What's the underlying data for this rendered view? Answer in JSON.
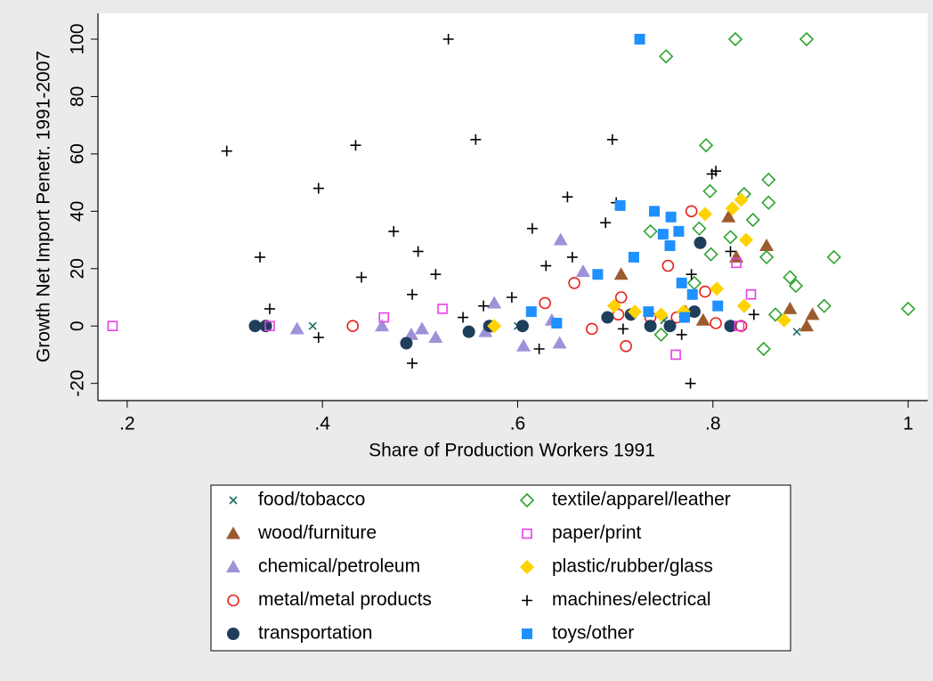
{
  "chart_data": {
    "type": "scatter",
    "x_label": "Share of Production Workers 1991",
    "y_label": "Growth Net Import Penetr. 1991-2007",
    "xlim": [
      0.17,
      1.02
    ],
    "ylim": [
      -26,
      109
    ],
    "xticks": [
      {
        "value": 0.2,
        "label": ".2"
      },
      {
        "value": 0.4,
        "label": ".4"
      },
      {
        "value": 0.6,
        "label": ".6"
      },
      {
        "value": 0.8,
        "label": ".8"
      },
      1
    ],
    "yticks": [
      -20,
      0,
      20,
      40,
      60,
      80,
      100
    ],
    "grid": false,
    "legend": "bottom",
    "series": [
      {
        "name": "food/tobacco",
        "color": "#1a6e64",
        "marker": "x",
        "x": [
          0.39,
          0.57,
          0.6,
          0.75,
          0.886
        ],
        "values": [
          0,
          -1,
          0,
          2,
          -2
        ]
      },
      {
        "name": "wood/furniture",
        "color": "#9c5b2f",
        "marker": "triangle",
        "x": [
          0.706,
          0.816,
          0.855,
          0.879,
          0.902,
          0.896,
          0.824,
          0.79,
          0.772
        ],
        "values": [
          18,
          38,
          28,
          6,
          4,
          0,
          24,
          2,
          5
        ]
      },
      {
        "name": "chemical/petroleum",
        "color": "#9d92d8",
        "marker": "triangle",
        "x": [
          0.374,
          0.461,
          0.491,
          0.502,
          0.516,
          0.576,
          0.606,
          0.644,
          0.643,
          0.667,
          0.635,
          0.567
        ],
        "values": [
          -1,
          0,
          -3,
          -1,
          -4,
          8,
          -7,
          30,
          -6,
          19,
          2,
          -2
        ]
      },
      {
        "name": "metal/metal products",
        "color": "#e8221d",
        "marker": "circle-open",
        "x": [
          0.431,
          0.628,
          0.658,
          0.706,
          0.711,
          0.754,
          0.778,
          0.736,
          0.792,
          0.803,
          0.829,
          0.763,
          0.676,
          0.703
        ],
        "values": [
          0,
          8,
          15,
          10,
          -7,
          21,
          40,
          3,
          12,
          1,
          0,
          3,
          -1,
          4
        ]
      },
      {
        "name": "transportation",
        "color": "#1f3e5c",
        "marker": "circle",
        "x": [
          0.331,
          0.342,
          0.486,
          0.55,
          0.571,
          0.605,
          0.692,
          0.716,
          0.736,
          0.756,
          0.787,
          0.781,
          0.818
        ],
        "values": [
          0,
          0,
          -6,
          -2,
          0,
          0,
          3,
          4,
          0,
          0,
          29,
          5,
          0
        ]
      },
      {
        "name": "textile/apparel/leather",
        "color": "#2ea32e",
        "marker": "diamond-open",
        "x": [
          0.752,
          0.823,
          0.896,
          0.793,
          0.797,
          0.832,
          0.857,
          0.857,
          0.841,
          0.786,
          0.736,
          0.818,
          0.798,
          0.855,
          0.924,
          0.879,
          0.885,
          1,
          0.914,
          0.852,
          0.747,
          0.781,
          0.864
        ],
        "values": [
          94,
          100,
          100,
          63,
          47,
          46,
          51,
          43,
          37,
          34,
          33,
          31,
          25,
          24,
          24,
          17,
          14,
          6,
          7,
          -8,
          -3,
          15,
          4
        ]
      },
      {
        "name": "paper/print",
        "color": "#e83ee8",
        "marker": "square-open",
        "x": [
          0.185,
          0.346,
          0.463,
          0.523,
          0.762,
          0.824,
          0.839,
          0.827
        ],
        "values": [
          0,
          0,
          3,
          6,
          -10,
          22,
          11,
          0
        ]
      },
      {
        "name": "plastic/rubber/glass",
        "color": "#ffd200",
        "marker": "diamond",
        "x": [
          0.792,
          0.82,
          0.829,
          0.834,
          0.804,
          0.77,
          0.747,
          0.873,
          0.72,
          0.832,
          0.699,
          0.576
        ],
        "values": [
          39,
          41,
          44,
          30,
          13,
          5,
          4,
          2,
          5,
          7,
          7,
          0
        ]
      },
      {
        "name": "machines/electrical",
        "color": "#000000",
        "marker": "plus",
        "x": [
          0.302,
          0.336,
          0.346,
          0.396,
          0.396,
          0.434,
          0.44,
          0.473,
          0.498,
          0.492,
          0.492,
          0.529,
          0.557,
          0.516,
          0.651,
          0.615,
          0.629,
          0.656,
          0.697,
          0.701,
          0.69,
          0.799,
          0.803,
          0.777,
          0.778,
          0.818,
          0.565,
          0.594,
          0.622,
          0.708,
          0.768,
          0.842,
          0.544
        ],
        "values": [
          61,
          24,
          6,
          48,
          -4,
          63,
          17,
          33,
          26,
          11,
          -13,
          100,
          65,
          18,
          45,
          34,
          21,
          24,
          65,
          43,
          36,
          53,
          54,
          -20,
          18,
          26,
          7,
          10,
          -8,
          -1,
          -3,
          4,
          3
        ]
      },
      {
        "name": "toys/other",
        "color": "#1e90ff",
        "marker": "square",
        "x": [
          0.725,
          0.705,
          0.74,
          0.757,
          0.749,
          0.765,
          0.756,
          0.719,
          0.682,
          0.768,
          0.64,
          0.614,
          0.734,
          0.779,
          0.805,
          0.771
        ],
        "values": [
          100,
          42,
          40,
          38,
          32,
          33,
          28,
          24,
          18,
          15,
          1,
          5,
          5,
          11,
          7,
          3
        ]
      }
    ]
  }
}
